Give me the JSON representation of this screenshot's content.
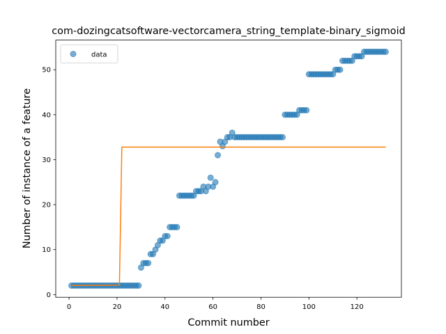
{
  "chart_data": {
    "type": "scatter",
    "title": "com-dozingcatsoftware-vectorcamera_string_template-binary_sigmoid",
    "xlabel": "Commit number",
    "ylabel": "Number of instance of a feature",
    "xlim": [
      -5.55,
      138.55
    ],
    "ylim": [
      -0.6,
      56.6
    ],
    "xticks": [
      0,
      20,
      40,
      60,
      80,
      100,
      120
    ],
    "yticks": [
      0,
      10,
      20,
      30,
      40,
      50
    ],
    "legend": "upper left",
    "series": [
      {
        "name": "data",
        "type": "scatter",
        "color": "#1f77b4",
        "x": [
          1,
          2,
          3,
          4,
          5,
          6,
          7,
          8,
          9,
          10,
          11,
          12,
          13,
          14,
          15,
          16,
          17,
          18,
          19,
          20,
          21,
          22,
          23,
          24,
          25,
          26,
          27,
          28,
          29,
          30,
          31,
          32,
          33,
          34,
          35,
          36,
          37,
          38,
          39,
          40,
          41,
          42,
          43,
          44,
          45,
          46,
          47,
          48,
          49,
          50,
          51,
          52,
          53,
          54,
          55,
          56,
          57,
          58,
          59,
          60,
          61,
          62,
          63,
          64,
          65,
          66,
          67,
          68,
          69,
          70,
          71,
          72,
          73,
          74,
          75,
          76,
          77,
          78,
          79,
          80,
          81,
          82,
          83,
          84,
          85,
          86,
          87,
          88,
          89,
          90,
          91,
          92,
          93,
          94,
          95,
          96,
          97,
          98,
          99,
          100,
          101,
          102,
          103,
          104,
          105,
          106,
          107,
          108,
          109,
          110,
          111,
          112,
          113,
          114,
          115,
          116,
          117,
          118,
          119,
          120,
          121,
          122,
          123,
          124,
          125,
          126,
          127,
          128,
          129,
          130,
          131,
          132
        ],
        "values": [
          2,
          2,
          2,
          2,
          2,
          2,
          2,
          2,
          2,
          2,
          2,
          2,
          2,
          2,
          2,
          2,
          2,
          2,
          2,
          2,
          2,
          2,
          2,
          2,
          2,
          2,
          2,
          2,
          2,
          6,
          7,
          7,
          7,
          9,
          9,
          10,
          11,
          12,
          12,
          13,
          13,
          15,
          15,
          15,
          15,
          22,
          22,
          22,
          22,
          22,
          22,
          22,
          23,
          23,
          23,
          24,
          23,
          24,
          26,
          24,
          25,
          31,
          34,
          33,
          34,
          35,
          35,
          36,
          35,
          35,
          35,
          35,
          35,
          35,
          35,
          35,
          35,
          35,
          35,
          35,
          35,
          35,
          35,
          35,
          35,
          35,
          35,
          35,
          35,
          40,
          40,
          40,
          40,
          40,
          40,
          41,
          41,
          41,
          41,
          49,
          49,
          49,
          49,
          49,
          49,
          49,
          49,
          49,
          49,
          49,
          50,
          50,
          50,
          52,
          52,
          52,
          52,
          52,
          53,
          53,
          53,
          53,
          54,
          54,
          54,
          54,
          54,
          54,
          54,
          54,
          54,
          54
        ]
      },
      {
        "type": "line",
        "color": "#ff7f0e",
        "x": [
          1,
          21,
          22,
          132
        ],
        "values": [
          2.0,
          2.1,
          32.8,
          32.8
        ]
      }
    ]
  }
}
